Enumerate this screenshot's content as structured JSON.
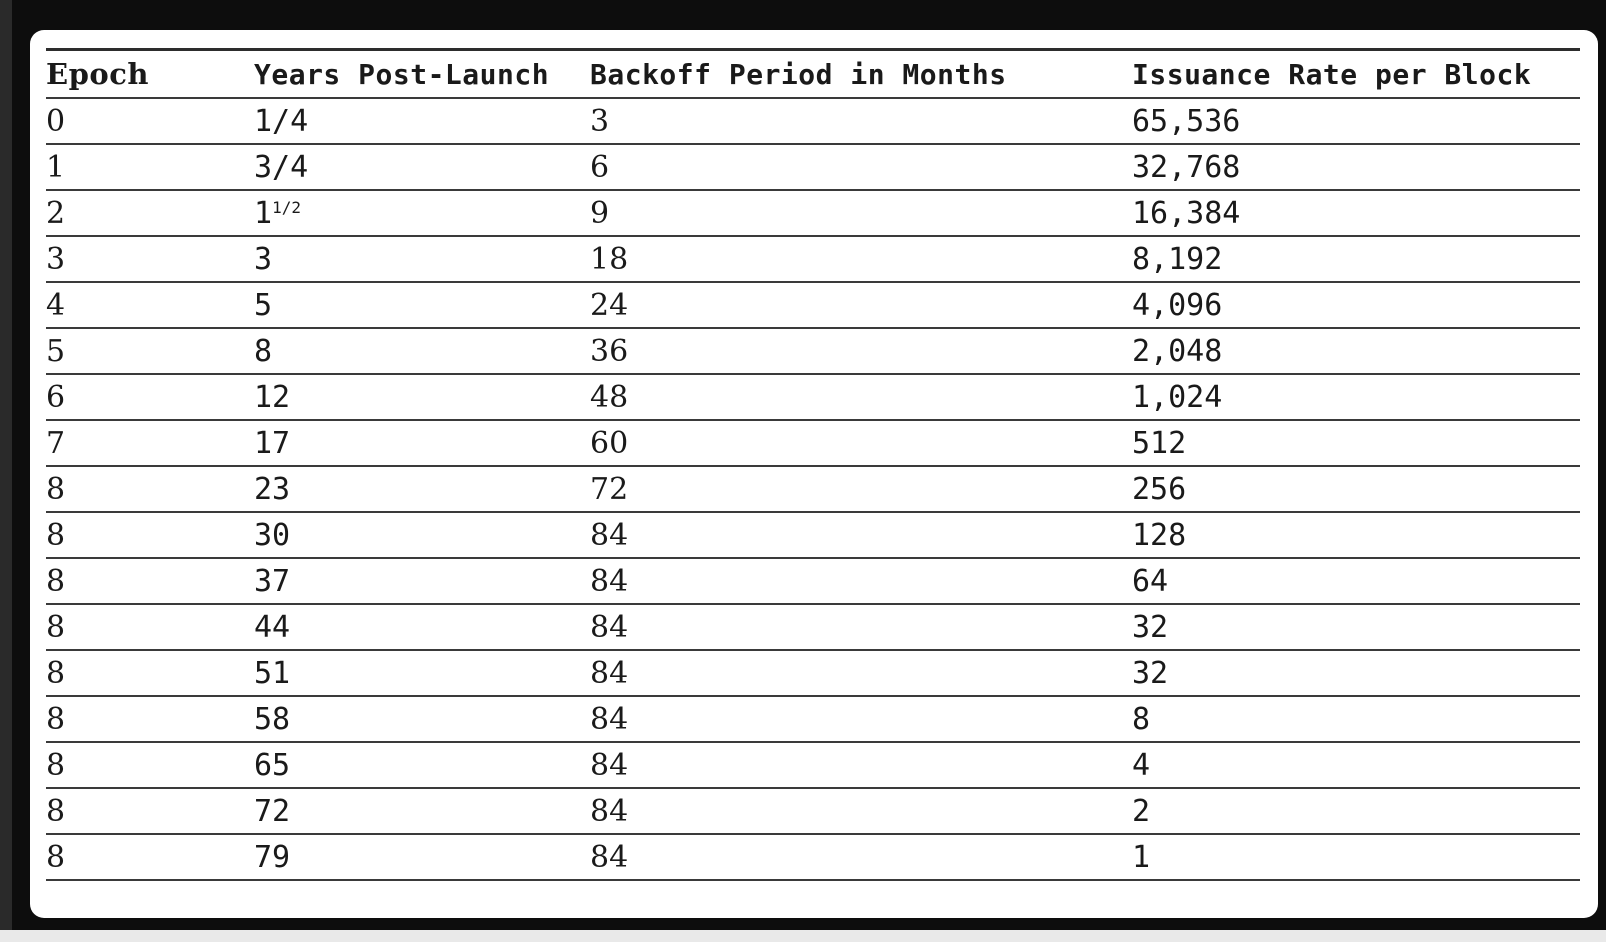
{
  "table": {
    "headers": [
      "Epoch",
      "Years Post-Launch",
      "Backoff Period in Months",
      "Issuance Rate per Block"
    ],
    "rows": [
      [
        "0",
        "1/4",
        "3",
        "65,536"
      ],
      [
        "1",
        "3/4",
        "6",
        "32,768"
      ],
      [
        "2",
        "11/2",
        "9",
        "16,384"
      ],
      [
        "3",
        "3",
        "18",
        "8,192"
      ],
      [
        "4",
        "5",
        "24",
        "4,096"
      ],
      [
        "5",
        "8",
        "36",
        "2,048"
      ],
      [
        "6",
        "12",
        "48",
        "1,024"
      ],
      [
        "7",
        "17",
        "60",
        "512"
      ],
      [
        "8",
        "23",
        "72",
        "256"
      ],
      [
        "8",
        "30",
        "84",
        "128"
      ],
      [
        "8",
        "37",
        "84",
        "64"
      ],
      [
        "8",
        "44",
        "84",
        "32"
      ],
      [
        "8",
        "51",
        "84",
        "32"
      ],
      [
        "8",
        "58",
        "84",
        "8"
      ],
      [
        "8",
        "65",
        "84",
        "4"
      ],
      [
        "8",
        "72",
        "84",
        "2"
      ],
      [
        "8",
        "79",
        "84",
        "1"
      ]
    ]
  },
  "fraction_row": {
    "whole": "1",
    "superscript": "1/2"
  },
  "colors": {
    "frame": "#0d0d0d",
    "card": "#ffffff",
    "rule": "#3a3a3a",
    "text": "#1a1a1a"
  }
}
